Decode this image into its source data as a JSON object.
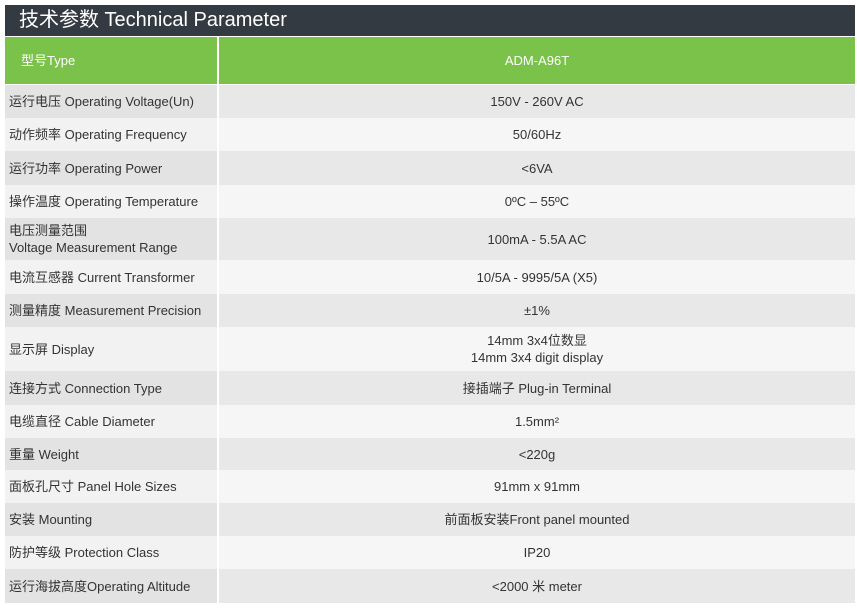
{
  "title": "技术参数 Technical Parameter",
  "table": {
    "header": [
      "型号Type",
      "ADM-A96T"
    ],
    "rows": [
      [
        [
          "运行电压 Operating Voltage(Un)"
        ],
        [
          "150V - 260V AC"
        ]
      ],
      [
        [
          "动作频率 Operating Frequency"
        ],
        [
          "50/60Hz"
        ]
      ],
      [
        [
          "运行功率 Operating Power"
        ],
        [
          "<6VA"
        ]
      ],
      [
        [
          "操作温度 Operating Temperature"
        ],
        [
          "0ºC – 55ºC"
        ]
      ],
      [
        [
          "电压测量范围",
          "Voltage Measurement Range"
        ],
        [
          "100mA - 5.5A AC"
        ]
      ],
      [
        [
          "电流互感器 Current Transformer"
        ],
        [
          "10/5A - 9995/5A (X5)"
        ]
      ],
      [
        [
          "测量精度 Measurement Precision"
        ],
        [
          "±1%"
        ]
      ],
      [
        [
          "显示屏 Display"
        ],
        [
          "14mm 3x4位数显",
          "14mm 3x4 digit  display"
        ]
      ],
      [
        [
          "连接方式 Connection Type"
        ],
        [
          "接插端子 Plug-in Terminal"
        ]
      ],
      [
        [
          "电缆直径 Cable Diameter"
        ],
        [
          "1.5mm²"
        ]
      ],
      [
        [
          "重量 Weight"
        ],
        [
          "<220g"
        ]
      ],
      [
        [
          "面板孔尺寸 Panel Hole Sizes"
        ],
        [
          "91mm x 91mm"
        ]
      ],
      [
        [
          "安装 Mounting"
        ],
        [
          "前面板安装Front panel mounted"
        ]
      ],
      [
        [
          "防护等级 Protection Class"
        ],
        [
          "IP20"
        ]
      ],
      [
        [
          "运行海拔高度Operating Altitude"
        ],
        [
          "<2000 米 meter"
        ]
      ]
    ]
  }
}
